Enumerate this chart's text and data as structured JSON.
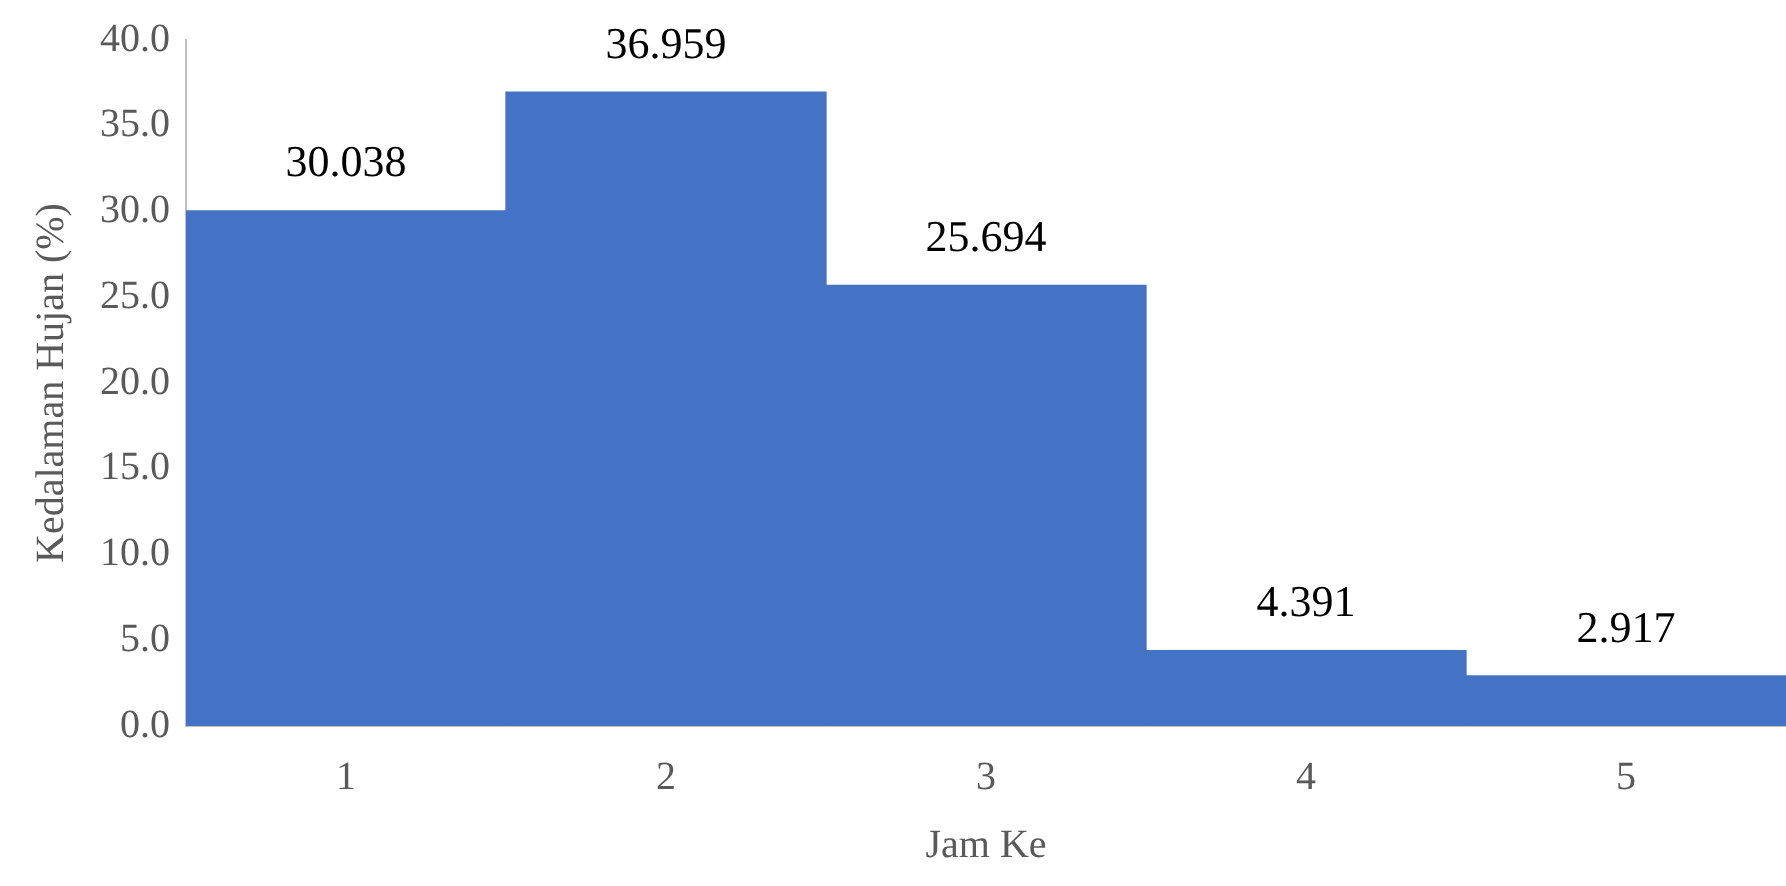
{
  "chart_data": {
    "type": "bar",
    "xlabel": "Jam Ke",
    "ylabel": "Kedalaman Hujan (%)",
    "categories": [
      "1",
      "2",
      "3",
      "4",
      "5"
    ],
    "values": [
      30.038,
      36.959,
      25.694,
      4.391,
      2.917
    ],
    "color": "#4472c4",
    "ylim": [
      0,
      40
    ],
    "yticks": [
      {
        "value": 0,
        "label": "0.0"
      },
      {
        "value": 5,
        "label": "5.0"
      },
      {
        "value": 10,
        "label": "10.0"
      },
      {
        "value": 15,
        "label": "15.0"
      },
      {
        "value": 20,
        "label": "20.0"
      },
      {
        "value": 25,
        "label": "25.0"
      },
      {
        "value": 30,
        "label": "30.0"
      },
      {
        "value": 35,
        "label": "35.0"
      },
      {
        "value": 40,
        "label": "40.0"
      }
    ],
    "grid": false,
    "legend": false,
    "data_labels": true
  }
}
